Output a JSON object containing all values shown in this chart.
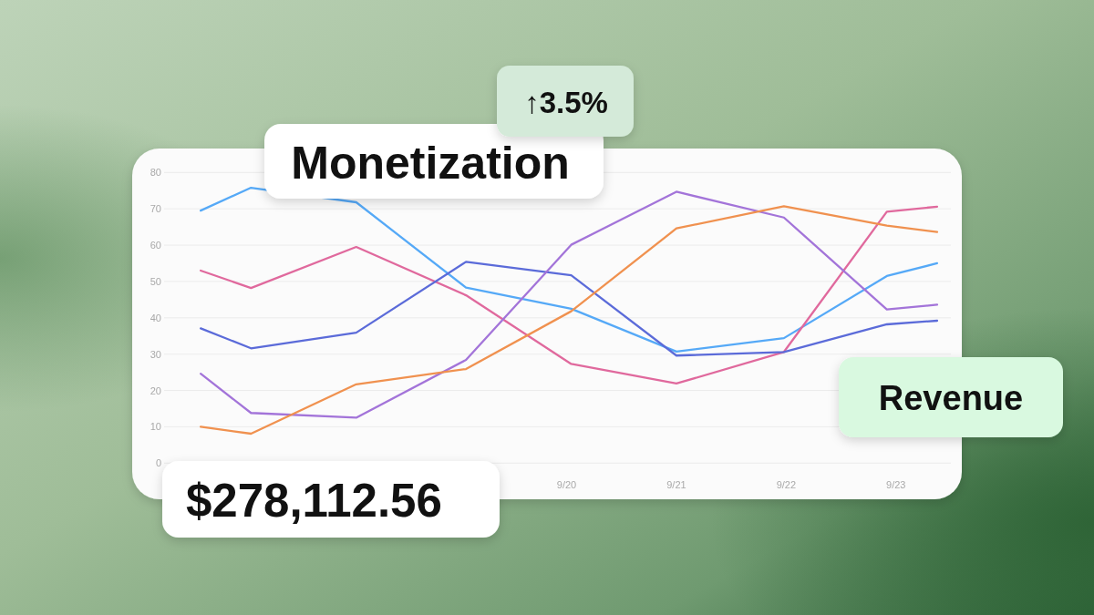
{
  "chart_data": {
    "type": "line",
    "title": "Monetization",
    "annotations": [
      "↑3.5%",
      "Revenue",
      "$278,112.56"
    ],
    "x": [
      "--09-16T16:00",
      "--09-17T03:00",
      "--09-18T02:00",
      "--09-19T02:00",
      "--09-20T01:00",
      "--09-21T00:00",
      "--09-21T23:30",
      "--09-22T22:00",
      "--09-23T09:00"
    ],
    "series": [
      {
        "color": "#55a9f7",
        "values": [
          69.5,
          75.8,
          71.8,
          48.3,
          42.5,
          30.7,
          34.4,
          51.5,
          55
        ]
      },
      {
        "color": "#e0699d",
        "values": [
          53,
          48.2,
          59.5,
          46.2,
          27.3,
          21.9,
          30.6,
          69.2,
          70.6
        ]
      },
      {
        "color": "#5b6bd9",
        "values": [
          37.1,
          31.6,
          35.9,
          55.4,
          51.7,
          29.6,
          30.6,
          38.2,
          39.2
        ]
      },
      {
        "color": "#a374d9",
        "values": [
          24.6,
          13.8,
          12.5,
          28.4,
          60.1,
          74.7,
          67.6,
          42.3,
          43.6
        ]
      },
      {
        "color": "#f0914f",
        "values": [
          10,
          8.1,
          21.7,
          25.9,
          41.8,
          64.6,
          70.7,
          65.4,
          63.6
        ]
      }
    ],
    "xlim": [
      "--09-16T08:00",
      "--09-23T12:00"
    ],
    "xticks": [
      {
        "value": "--09-20",
        "label": "9/20"
      },
      {
        "value": "--09-21",
        "label": "9/21"
      },
      {
        "value": "--09-22",
        "label": "9/22"
      },
      {
        "value": "--09-23",
        "label": "9/23"
      }
    ],
    "ylim": [
      0,
      80
    ],
    "yticks": [
      0,
      10,
      20,
      30,
      40,
      50,
      60,
      70,
      80
    ],
    "grid": "y"
  }
}
